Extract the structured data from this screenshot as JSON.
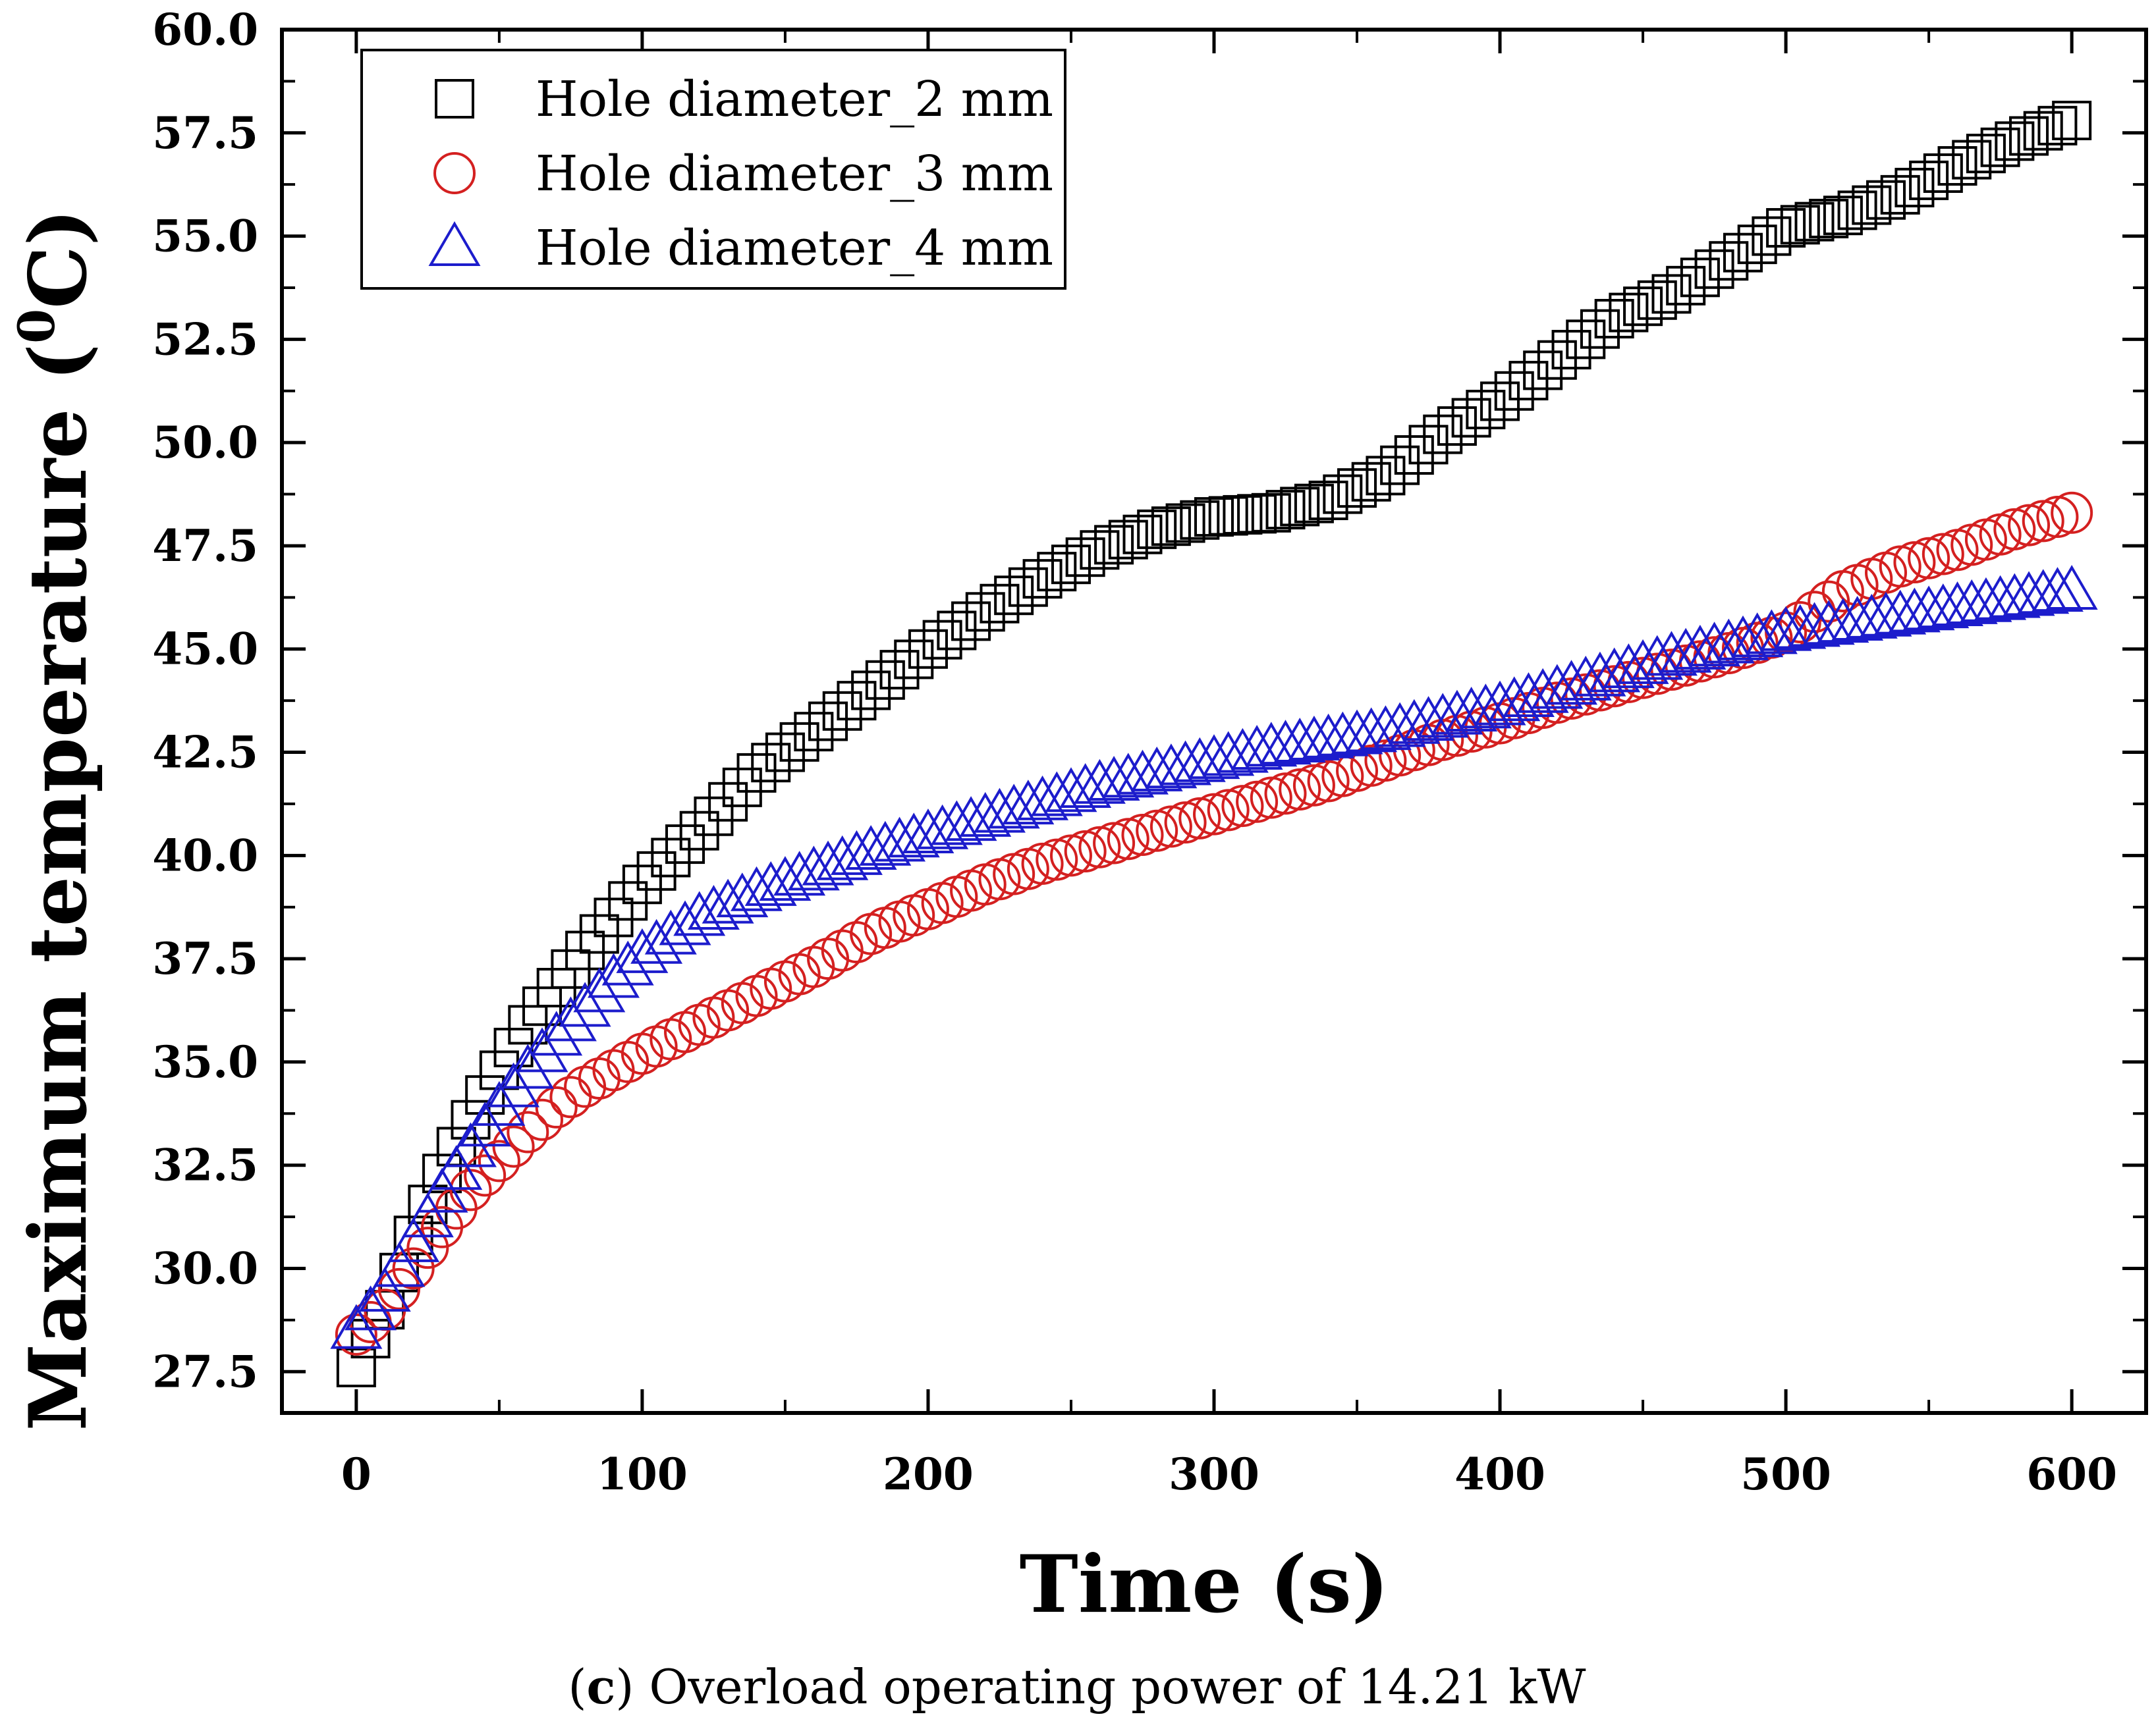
{
  "chart_data": {
    "type": "scatter",
    "caption": {
      "label": "c",
      "text": "Overload operating power of 14.21 kW"
    },
    "xlabel": "Time (s)",
    "ylabel": {
      "text": "Maximum temperature (",
      "superscript": "0",
      "unit": "C)"
    },
    "xlim": [
      -26,
      626
    ],
    "ylim": [
      26.5,
      60.0
    ],
    "xticks": [
      0,
      100,
      200,
      300,
      400,
      500,
      600
    ],
    "yticks": [
      27.5,
      30.0,
      32.5,
      35.0,
      37.5,
      40.0,
      42.5,
      45.0,
      47.5,
      50.0,
      52.5,
      55.0,
      57.5,
      60.0
    ],
    "legend_position": "top-left",
    "series": [
      {
        "name": "Hole diameter_2 mm",
        "marker": "square",
        "color": "#000000",
        "x": [
          0,
          10,
          20,
          30,
          40,
          50,
          60,
          70,
          80,
          90,
          100,
          120,
          140,
          160,
          180,
          200,
          220,
          240,
          260,
          280,
          300,
          320,
          340,
          360,
          380,
          400,
          420,
          440,
          460,
          480,
          500,
          520,
          540,
          560,
          580,
          600
        ],
        "values": [
          27.6,
          29.0,
          30.8,
          32.3,
          33.6,
          34.8,
          35.9,
          36.8,
          37.7,
          38.5,
          39.3,
          40.6,
          42.0,
          43.0,
          44.0,
          45.0,
          45.9,
          46.7,
          47.4,
          47.9,
          48.2,
          48.3,
          48.6,
          49.2,
          50.2,
          51.0,
          52.0,
          53.0,
          53.6,
          54.4,
          55.2,
          55.5,
          56.0,
          56.7,
          57.3,
          57.8
        ]
      },
      {
        "name": "Hole diameter_3 mm",
        "marker": "circle",
        "color": "#d42020",
        "x": [
          0,
          10,
          20,
          30,
          40,
          50,
          60,
          70,
          80,
          90,
          100,
          120,
          140,
          160,
          180,
          200,
          220,
          240,
          260,
          280,
          300,
          320,
          340,
          360,
          380,
          400,
          420,
          440,
          460,
          480,
          500,
          520,
          540,
          560,
          580,
          600
        ],
        "values": [
          28.4,
          29.0,
          30.0,
          31.0,
          31.9,
          32.6,
          33.3,
          33.9,
          34.4,
          34.8,
          35.2,
          35.9,
          36.6,
          37.3,
          38.1,
          38.7,
          39.3,
          39.8,
          40.2,
          40.6,
          41.0,
          41.4,
          41.8,
          42.3,
          42.8,
          43.2,
          43.7,
          44.1,
          44.5,
          44.9,
          45.4,
          46.4,
          47.0,
          47.4,
          47.9,
          48.3
        ]
      },
      {
        "name": "Hole diameter_4 mm",
        "marker": "triangle",
        "color": "#1c1ccc",
        "x": [
          0,
          10,
          20,
          30,
          40,
          50,
          60,
          70,
          80,
          90,
          100,
          120,
          140,
          160,
          180,
          200,
          220,
          240,
          260,
          280,
          300,
          320,
          340,
          360,
          380,
          400,
          420,
          440,
          460,
          480,
          500,
          520,
          540,
          560,
          580,
          600
        ],
        "values": [
          28.5,
          29.4,
          30.6,
          31.8,
          32.9,
          33.9,
          34.8,
          35.6,
          36.3,
          37.0,
          37.6,
          38.5,
          39.1,
          39.6,
          40.1,
          40.5,
          40.9,
          41.3,
          41.7,
          42.0,
          42.3,
          42.6,
          42.8,
          43.0,
          43.3,
          43.6,
          44.0,
          44.4,
          44.8,
          45.1,
          45.4,
          45.6,
          45.8,
          46.0,
          46.2,
          46.4
        ]
      }
    ]
  }
}
